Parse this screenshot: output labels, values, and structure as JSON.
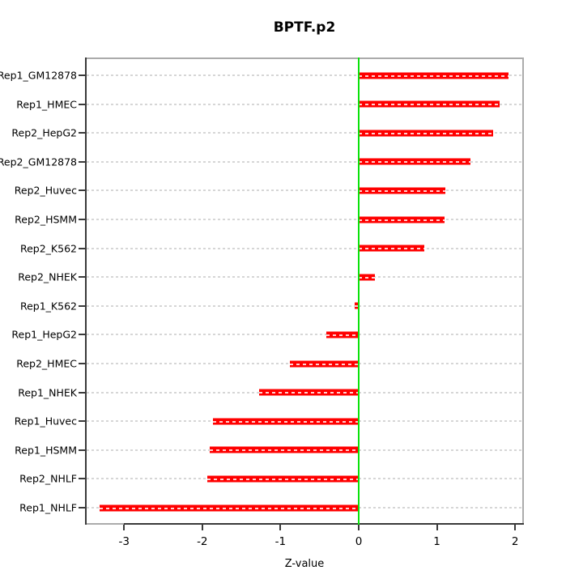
{
  "title": "BPTF.p2",
  "axes": {
    "xlabel": "Z-value",
    "x_tick_labels": [
      "-3",
      "-2",
      "-1",
      "0",
      "1",
      "2"
    ]
  },
  "chart_data": {
    "type": "bar",
    "orientation": "horizontal",
    "title": "BPTF.p2",
    "xlabel": "Z-value",
    "ylabel": "",
    "categories": [
      "Rep1_GM12878",
      "Rep1_HMEC",
      "Rep2_HepG2",
      "Rep2_GM12878",
      "Rep2_Huvec",
      "Rep2_HSMM",
      "Rep2_K562",
      "Rep2_NHEK",
      "Rep1_K562",
      "Rep1_HepG2",
      "Rep2_HMEC",
      "Rep1_NHEK",
      "Rep1_Huvec",
      "Rep1_HSMM",
      "Rep2_NHLF",
      "Rep1_NHLF"
    ],
    "values": [
      1.91,
      1.8,
      1.72,
      1.43,
      1.11,
      1.1,
      0.84,
      0.21,
      -0.05,
      -0.41,
      -0.88,
      -1.27,
      -1.86,
      -1.9,
      -1.94,
      -3.31
    ],
    "x_ticks": [
      -3,
      -2,
      -1,
      0,
      1,
      2
    ],
    "xlim": [
      -3.5,
      2.11
    ],
    "zero_reference_line": 0,
    "grid": true,
    "legend": null,
    "colors": {
      "bar": "#ff0000",
      "bar_dash_overlay": "#ffffff",
      "zero_line": "#0ae20a",
      "grid_line": "#d6d6d6",
      "box": "#ababab",
      "axis": "#3a3a3a",
      "text": "#000000"
    }
  }
}
